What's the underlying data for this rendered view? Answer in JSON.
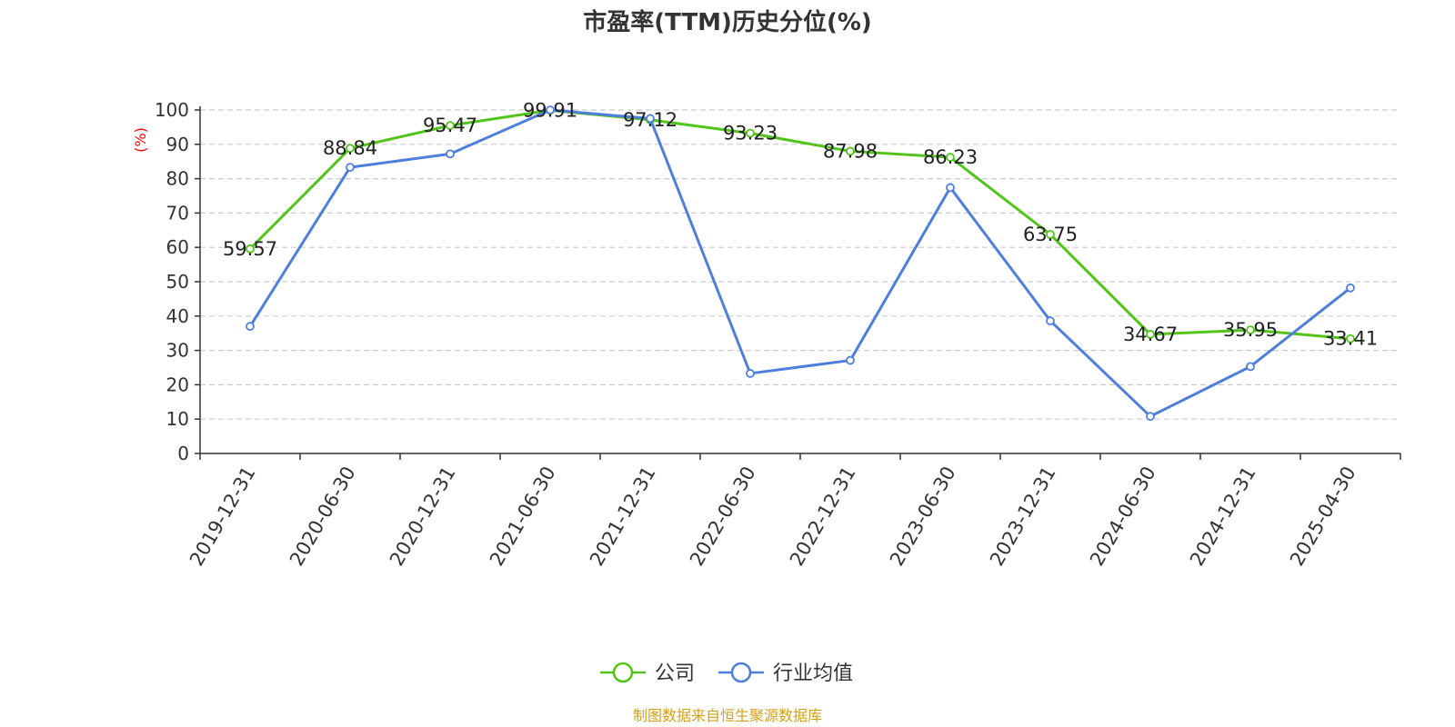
{
  "chart_data": {
    "type": "line",
    "title": "市盈率(TTM)历史分位(%)",
    "ylabel": "(%)",
    "ylim": [
      0,
      100
    ],
    "yticks": [
      0,
      10,
      20,
      30,
      40,
      50,
      60,
      70,
      80,
      90,
      100
    ],
    "grid": true,
    "legend_position": "bottom-center",
    "categories": [
      "2019-12-31",
      "2020-06-30",
      "2020-12-31",
      "2021-06-30",
      "2021-12-31",
      "2022-06-30",
      "2022-12-31",
      "2023-06-30",
      "2023-12-31",
      "2024-06-30",
      "2024-12-31",
      "2025-04-30"
    ],
    "series": [
      {
        "name": "公司",
        "color": "#52c41a",
        "values": [
          59.57,
          88.84,
          95.47,
          99.91,
          97.12,
          93.23,
          87.98,
          86.23,
          63.75,
          34.67,
          35.95,
          33.41
        ],
        "labels": [
          "59.57",
          "88.84",
          "95.47",
          "99.91",
          "97.12",
          "93.23",
          "87.98",
          "86.23",
          "63.75",
          "34.67",
          "35.95",
          "33.41"
        ]
      },
      {
        "name": "行业均值",
        "color": "#4e7fdd",
        "values": [
          37,
          83.3,
          87.2,
          100,
          97.5,
          23.3,
          27.1,
          77.4,
          38.6,
          10.8,
          25.3,
          48.2
        ]
      }
    ]
  },
  "source_text": "制图数据来自恒生聚源数据库",
  "colors": {
    "ylabel": "#ff0000",
    "source": "#d4a017",
    "grid": "#cccccc",
    "axis": "#333333"
  }
}
